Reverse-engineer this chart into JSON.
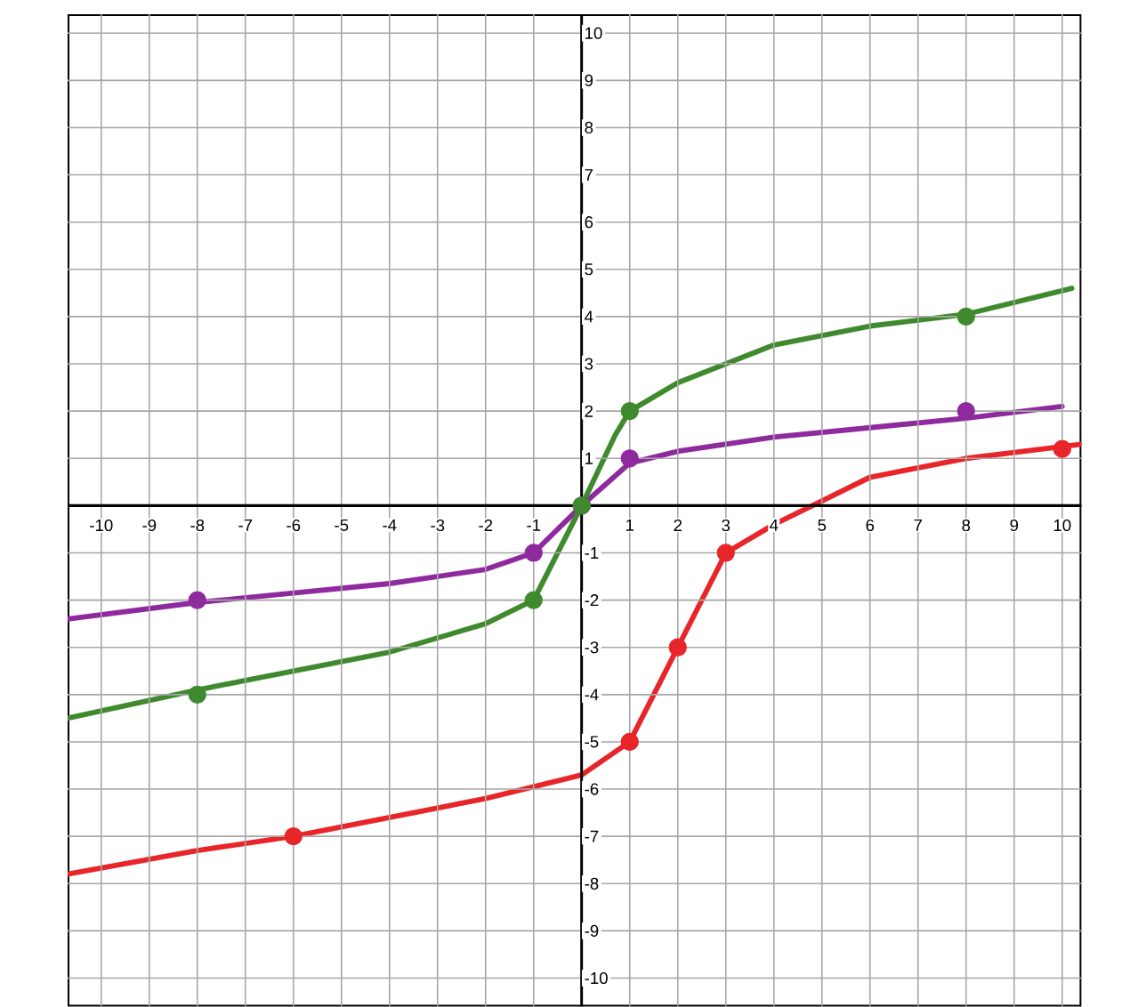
{
  "chart_data": {
    "type": "line",
    "xlim": [
      -10.7,
      10.4
    ],
    "ylim": [
      -10.6,
      10.4
    ],
    "xticks": [
      -10,
      -9,
      -8,
      -7,
      -6,
      -5,
      -4,
      -3,
      -2,
      -1,
      1,
      2,
      3,
      4,
      5,
      6,
      7,
      8,
      9,
      10
    ],
    "yticks": [
      -10,
      -9,
      -8,
      -7,
      -6,
      -5,
      -4,
      -3,
      -2,
      -1,
      1,
      2,
      3,
      4,
      5,
      6,
      7,
      8,
      9,
      10
    ],
    "grid": true,
    "series": [
      {
        "color": "#8e2a9e",
        "marker": "none",
        "x": [
          -10.7,
          -8,
          -6,
          -4,
          -2,
          -1,
          0,
          1,
          2,
          4,
          6,
          8,
          10
        ],
        "values": [
          -2.4,
          -2.05,
          -1.85,
          -1.65,
          -1.35,
          -1,
          0,
          0.9,
          1.15,
          1.45,
          1.65,
          1.85,
          2.1
        ]
      },
      {
        "color": "#3f8a2e",
        "marker": "none",
        "x": [
          -10.7,
          -8,
          -6,
          -4,
          -2,
          -1,
          0,
          0.7,
          1,
          2,
          3,
          4,
          6,
          8,
          10.2
        ],
        "values": [
          -4.5,
          -3.9,
          -3.5,
          -3.1,
          -2.5,
          -2,
          0,
          1.5,
          2,
          2.6,
          3,
          3.4,
          3.8,
          4.05,
          4.6
        ]
      },
      {
        "color": "#e8262a",
        "marker": "none",
        "x": [
          -10.7,
          -8,
          -6,
          -4,
          -2,
          0,
          1,
          2,
          3,
          4,
          5,
          6,
          8,
          10.4
        ],
        "values": [
          -7.8,
          -7.3,
          -7,
          -6.6,
          -6.2,
          -5.7,
          -5,
          -3,
          -1,
          -0.4,
          0.1,
          0.6,
          1,
          1.3
        ]
      },
      {
        "type": "scatter",
        "color": "#8e2a9e",
        "marker": "circle",
        "x": [
          -8,
          -1,
          0,
          1,
          8
        ],
        "values": [
          -2,
          -1,
          0,
          1,
          2
        ]
      },
      {
        "type": "scatter",
        "color": "#3f8a2e",
        "marker": "circle",
        "x": [
          -8,
          -1,
          0,
          1,
          8
        ],
        "values": [
          -4,
          -2,
          0,
          2,
          4
        ]
      },
      {
        "type": "scatter",
        "color": "#e8262a",
        "marker": "circle",
        "x": [
          -6,
          1,
          2,
          3,
          10
        ],
        "values": [
          -7,
          -5,
          -3,
          -1,
          1.2
        ]
      }
    ]
  }
}
